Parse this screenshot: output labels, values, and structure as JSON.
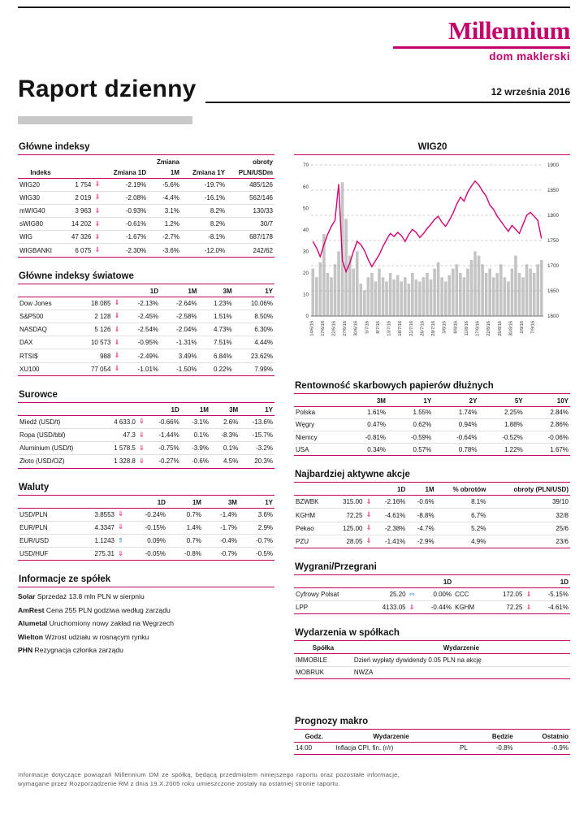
{
  "page": {
    "brand": {
      "logo_text": "Millennium",
      "logo_sub": "dom maklerski"
    },
    "title": "Raport dzienny",
    "date": "12 września 2016",
    "footer": "Informacje dotyczące powiązań Millennium DM ze spółką, będącą przedmiotem niniejszego raportu oraz pozostałe informacje, wymagane przez Rozporządzenie RM z dnia 19.X.2005 roku umieszczone zostały na ostatniej stronie raportu."
  },
  "colors": {
    "brand": "#c5006a",
    "arrow_down": "#e8478b",
    "arrow_up": "#5b9bd5",
    "arrow_flat": "#7ab3e0",
    "volume_bar": "#c4c4c4",
    "index_line": "#d6006e"
  },
  "tables": {
    "glowne_indeksy": {
      "title": "Główne indeksy",
      "cols": [
        "cl",
        "cr",
        "ca",
        "cr",
        "cr",
        "cr",
        "cr"
      ],
      "header_rows": [
        [
          "",
          "",
          "",
          "",
          "Zmiana",
          "",
          "obroty"
        ],
        [
          "Indeks",
          "",
          "",
          "Zmiana 1D",
          "1M",
          "Zmiana 1Y",
          "PLN/USDm"
        ]
      ],
      "rows": [
        [
          "WIG20",
          "1 754",
          "⇓",
          "-2.19%",
          "-5.6%",
          "-19.7%",
          "485/126"
        ],
        [
          "WIG30",
          "2 019",
          "⇓",
          "-2.08%",
          "-4.4%",
          "-16.1%",
          "562/146"
        ],
        [
          "mWIG40",
          "3 963",
          "⇓",
          "-0.93%",
          "3.1%",
          "8.2%",
          "130/33"
        ],
        [
          "sWIG80",
          "14 202",
          "⇓",
          "-0.61%",
          "1.2%",
          "8.2%",
          "30/7"
        ],
        [
          "WIG",
          "47 326",
          "⇓",
          "-1.67%",
          "-2.7%",
          "-8.1%",
          "687/178"
        ],
        [
          "WIGBANKI",
          "6 075",
          "⇓",
          "-2.30%",
          "-3.6%",
          "-12.0%",
          "242/62"
        ]
      ]
    },
    "indeksy_swiatowe": {
      "title": "Główne indeksy światowe",
      "cols": [
        "cl",
        "cr",
        "ca",
        "cr",
        "cr",
        "cr",
        "cr"
      ],
      "header_rows": [
        [
          "",
          "",
          "",
          "1D",
          "1M",
          "3M",
          "1Y"
        ]
      ],
      "rows": [
        [
          "Dow Jones",
          "18 085",
          "⇓",
          "-2.13%",
          "-2.64%",
          "1.23%",
          "10.06%"
        ],
        [
          "S&P500",
          "2 128",
          "⇓",
          "-2.45%",
          "-2.58%",
          "1.51%",
          "8.50%"
        ],
        [
          "NASDAQ",
          "5 126",
          "⇓",
          "-2.54%",
          "-2.04%",
          "4.73%",
          "6.30%"
        ],
        [
          "DAX",
          "10 573",
          "⇓",
          "-0.95%",
          "-1.31%",
          "7.51%",
          "4.44%"
        ],
        [
          "RTSI$",
          "988",
          "⇓",
          "-2.49%",
          "3.49%",
          "6.84%",
          "23.62%"
        ],
        [
          "XU100",
          "77 054",
          "⇓",
          "-1.01%",
          "-1.50%",
          "0.22%",
          "7.99%"
        ]
      ]
    },
    "surowce": {
      "title": "Surowce",
      "cols": [
        "cl",
        "cr",
        "ca",
        "cr",
        "cr",
        "cr",
        "cr"
      ],
      "header_rows": [
        [
          "",
          "",
          "",
          "1D",
          "1M",
          "3M",
          "1Y"
        ]
      ],
      "rows": [
        [
          "Miedź (USD/t)",
          "4 633.0",
          "⇓",
          "-0.66%",
          "-3.1%",
          "2.6%",
          "-13.6%"
        ],
        [
          "Ropa (USD/bbl)",
          "47.3",
          "⇓",
          "-1.44%",
          "0.1%",
          "-8.3%",
          "-15.7%"
        ],
        [
          "Aluminium (USD/t)",
          "1 578.5",
          "⇓",
          "-0.75%",
          "-3.9%",
          "0.1%",
          "-3.2%"
        ],
        [
          "Złoto (USD/OZ)",
          "1 328.8",
          "⇓",
          "-0.27%",
          "-0.6%",
          "4.5%",
          "20.3%"
        ]
      ]
    },
    "waluty": {
      "title": "Waluty",
      "cols": [
        "cl",
        "cr",
        "ca",
        "cr",
        "cr",
        "cr",
        "cr"
      ],
      "header_rows": [
        [
          "",
          "",
          "",
          "1D",
          "1M",
          "3M",
          "1Y"
        ]
      ],
      "rows": [
        [
          "USD/PLN",
          "3.8553",
          "⇓",
          "-0.24%",
          "0.7%",
          "-1.4%",
          "3.6%"
        ],
        [
          "EUR/PLN",
          "4.3347",
          "⇓",
          "-0.15%",
          "1.4%",
          "-1.7%",
          "2.9%"
        ],
        [
          "EUR/USD",
          "1.1243",
          "⇑",
          "0.09%",
          "0.7%",
          "-0.4%",
          "-0.7%"
        ],
        [
          "USD/HUF",
          "275.31",
          "⇓",
          "-0.05%",
          "-0.8%",
          "-0.7%",
          "-0.5%"
        ]
      ]
    },
    "rentownosc": {
      "title": "Rentowność skarbowych papierów dłużnych",
      "cols": [
        "cl",
        "cr",
        "cr",
        "cr",
        "cr",
        "cr"
      ],
      "header_rows": [
        [
          "",
          "3M",
          "1Y",
          "2Y",
          "5Y",
          "10Y"
        ]
      ],
      "rows": [
        [
          "Polska",
          "1.61%",
          "1.55%",
          "1.74%",
          "2.25%",
          "2.84%"
        ],
        [
          "Węgry",
          "0.47%",
          "0.62%",
          "0.94%",
          "1.88%",
          "2.86%"
        ],
        [
          "Niemcy",
          "-0.81%",
          "-0.59%",
          "-0.64%",
          "-0.52%",
          "-0.06%"
        ],
        [
          "USA",
          "0.34%",
          "0.57%",
          "0.78%",
          "1.22%",
          "1.67%"
        ]
      ]
    },
    "aktywne": {
      "title": "Najbardziej aktywne akcje",
      "cols": [
        "cl",
        "cr",
        "ca",
        "cr",
        "cr",
        "cr",
        "cr"
      ],
      "header_rows": [
        [
          "",
          "",
          "",
          "1D",
          "1M",
          "% obrotów",
          "obroty (PLN/USD)"
        ]
      ],
      "rows": [
        [
          "BZWBK",
          "315.00",
          "⇓",
          "-2.16%",
          "-0.6%",
          "8.1%",
          "39/10"
        ],
        [
          "KGHM",
          "72.25",
          "⇓",
          "-4.61%",
          "-8.8%",
          "6.7%",
          "32/8"
        ],
        [
          "Pekao",
          "125.00",
          "⇓",
          "-2.38%",
          "-4.7%",
          "5.2%",
          "25/6"
        ],
        [
          "PZU",
          "28.05",
          "⇓",
          "-1.41%",
          "-2.9%",
          "4.9%",
          "23/6"
        ]
      ]
    },
    "wygrani": {
      "title": "Wygrani/Przegrani",
      "cols": [
        "cl",
        "cr",
        "ca",
        "cr",
        "cl2",
        "cr",
        "ca",
        "cr"
      ],
      "header_rows": [
        [
          "",
          "",
          "",
          "1D",
          "",
          "",
          "",
          "1D"
        ]
      ],
      "rows": [
        [
          "Cyfrowy Polsat",
          "25.20",
          "⇔",
          "0.00%",
          "CCC",
          "172.05",
          "⇓",
          "-5.15%"
        ],
        [
          "LPP",
          "4133.05",
          "⇓",
          "-0.44%",
          "KGHM",
          "72.25",
          "⇓",
          "-4.61%"
        ]
      ]
    },
    "wydarzenia": {
      "title": "Wydarzenia w spółkach",
      "cols": [
        "cl",
        "cw"
      ],
      "header_rows": [
        [
          "Spółka",
          "Wydarzenie"
        ]
      ],
      "rows": [
        [
          "IMMOBILE",
          "Dzień wypłaty dywidendy 0.05 PLN na akcję"
        ],
        [
          "MOBRUK",
          "NWZA"
        ]
      ]
    },
    "prognozy": {
      "title": "Prognozy makro",
      "cols": [
        "cl",
        "cw",
        "cr",
        "cr",
        "cr"
      ],
      "header_rows": [
        [
          "Godz.",
          "Wydarzenie",
          "",
          "Będzie",
          "Ostatnio"
        ]
      ],
      "rows": [
        [
          "14:00",
          "Inflacja CPI, fin. (r/r)",
          "PL",
          "-0.8%",
          "-0.9%"
        ]
      ]
    }
  },
  "company_news": {
    "title": "Informacje ze spółek",
    "items": [
      {
        "name": "Solar",
        "text": "Sprzedaż 13.8 mln PLN w sierpniu"
      },
      {
        "name": "AmRest",
        "text": "Cena 255 PLN godziwa według zarządu"
      },
      {
        "name": "Alumetal",
        "text": "Uruchomiony nowy zakład na Węgrzech"
      },
      {
        "name": "Wielton",
        "text": "Wzrost udziału w rosnącym rynku"
      },
      {
        "name": "PHN",
        "text": "Rezygnacja członka zarządu"
      }
    ]
  },
  "chart_data": {
    "type": "line+bar",
    "title": "WIG20",
    "left_axis": {
      "min": 0,
      "max": 70,
      "ticks": [
        0,
        10,
        20,
        30,
        40,
        50,
        60,
        70
      ]
    },
    "right_axis": {
      "min": 1600,
      "max": 1900,
      "ticks": [
        1600,
        1650,
        1700,
        1750,
        1800,
        1850,
        1900
      ]
    },
    "grid": "dashed-horizontal",
    "tick_every": 3,
    "x_tick_labels": [
      "14/6/16",
      "17/6/16",
      "22/6/16",
      "27/6/16",
      "30/6/16",
      "5/7/16",
      "8/7/16",
      "13/7/16",
      "18/7/16",
      "21/7/16",
      "26/7/16",
      "29/7/16",
      "3/8/16",
      "8/8/16",
      "11/8/16",
      "17/8/16",
      "22/8/16",
      "25/8/16",
      "30/8/16",
      "2/9/16",
      "7/9/16"
    ],
    "series": [
      {
        "name": "obroty",
        "type": "bar",
        "axis": "left",
        "values": [
          22,
          18,
          25,
          38,
          20,
          18,
          24,
          30,
          62,
          45,
          28,
          22,
          30,
          15,
          12,
          18,
          20,
          16,
          22,
          18,
          16,
          20,
          17,
          19,
          16,
          18,
          15,
          20,
          17,
          16,
          18,
          20,
          17,
          22,
          25,
          18,
          16,
          19,
          22,
          24,
          20,
          18,
          22,
          26,
          30,
          28,
          24,
          20,
          22,
          18,
          20,
          24,
          18,
          16,
          22,
          28,
          20,
          18,
          24,
          22,
          20,
          24,
          26
        ]
      },
      {
        "name": "WIG20",
        "type": "line",
        "axis": "right",
        "values": [
          1748,
          1735,
          1718,
          1742,
          1762,
          1778,
          1790,
          1862,
          1710,
          1688,
          1705,
          1728,
          1748,
          1742,
          1730,
          1712,
          1698,
          1710,
          1722,
          1738,
          1752,
          1764,
          1758,
          1766,
          1760,
          1748,
          1762,
          1772,
          1766,
          1756,
          1764,
          1774,
          1782,
          1792,
          1798,
          1786,
          1778,
          1790,
          1804,
          1822,
          1836,
          1828,
          1846,
          1858,
          1868,
          1860,
          1848,
          1838,
          1820,
          1812,
          1798,
          1788,
          1778,
          1768,
          1780,
          1772,
          1764,
          1782,
          1800,
          1806,
          1798,
          1790,
          1754
        ]
      }
    ]
  }
}
